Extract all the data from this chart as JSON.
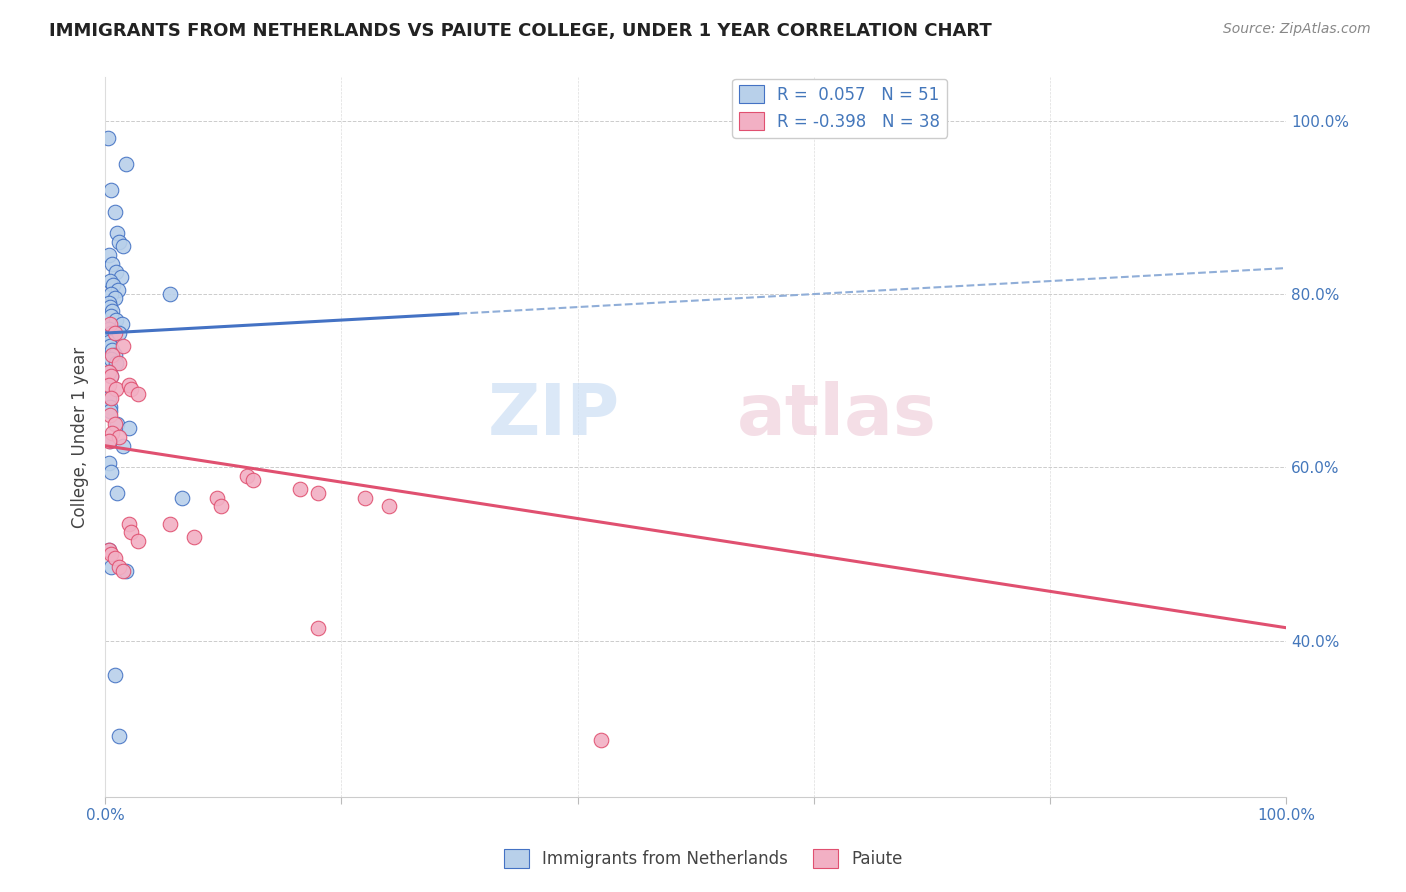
{
  "title": "IMMIGRANTS FROM NETHERLANDS VS PAIUTE COLLEGE, UNDER 1 YEAR CORRELATION CHART",
  "source": "Source: ZipAtlas.com",
  "ylabel": "College, Under 1 year",
  "legend_label1": "Immigrants from Netherlands",
  "legend_label2": "Paiute",
  "R1": 0.057,
  "N1": 51,
  "R2": -0.398,
  "N2": 38,
  "blue_color": "#b8d0ea",
  "pink_color": "#f2b0c4",
  "line_blue": "#4472c4",
  "line_pink": "#e05070",
  "dashed_blue": "#90aed8",
  "blue_line_y0": 75.5,
  "blue_line_y100": 83.0,
  "blue_solid_end": 30.0,
  "pink_line_y0": 62.5,
  "pink_line_y100": 41.5,
  "blue_scatter_x": [
    0.2,
    0.5,
    0.8,
    1.0,
    1.2,
    1.5,
    0.3,
    0.6,
    0.9,
    1.3,
    0.4,
    0.7,
    1.1,
    0.5,
    0.8,
    0.3,
    0.4,
    0.6,
    0.5,
    0.9,
    1.4,
    0.3,
    0.5,
    0.4,
    0.3,
    0.4,
    0.6,
    0.8,
    0.5,
    0.9,
    0.3,
    0.5,
    1.8,
    1.2,
    0.3,
    0.4,
    5.5,
    0.4,
    1.0,
    2.0,
    0.4,
    1.5,
    0.3,
    0.5,
    1.0,
    6.5,
    0.3,
    0.5,
    1.8,
    0.8,
    1.2
  ],
  "blue_scatter_y": [
    98.0,
    92.0,
    89.5,
    87.0,
    86.0,
    85.5,
    84.5,
    83.5,
    82.5,
    82.0,
    81.5,
    81.0,
    80.5,
    80.0,
    79.5,
    79.0,
    78.5,
    78.0,
    77.5,
    77.0,
    76.5,
    76.0,
    75.5,
    75.0,
    74.5,
    74.0,
    73.5,
    73.0,
    72.5,
    72.0,
    71.0,
    70.5,
    95.0,
    75.5,
    68.0,
    67.0,
    80.0,
    66.5,
    65.0,
    64.5,
    63.0,
    62.5,
    60.5,
    59.5,
    57.0,
    56.5,
    50.5,
    48.5,
    48.0,
    36.0,
    29.0
  ],
  "pink_scatter_x": [
    0.4,
    0.8,
    1.5,
    0.6,
    1.2,
    0.3,
    0.5,
    0.3,
    0.9,
    0.5,
    2.0,
    2.2,
    2.8,
    0.4,
    0.8,
    0.6,
    1.2,
    0.3,
    2.0,
    2.2,
    2.8,
    12.0,
    12.5,
    16.5,
    18.0,
    22.0,
    24.0,
    0.3,
    0.5,
    0.8,
    1.2,
    1.5,
    9.5,
    9.8,
    5.5,
    7.5,
    42.0,
    18.0
  ],
  "pink_scatter_y": [
    76.5,
    75.5,
    74.0,
    73.0,
    72.0,
    71.0,
    70.5,
    69.5,
    69.0,
    68.0,
    69.5,
    69.0,
    68.5,
    66.0,
    65.0,
    64.0,
    63.5,
    63.0,
    53.5,
    52.5,
    51.5,
    59.0,
    58.5,
    57.5,
    57.0,
    56.5,
    55.5,
    50.5,
    50.0,
    49.5,
    48.5,
    48.0,
    56.5,
    55.5,
    53.5,
    52.0,
    28.5,
    41.5
  ],
  "xlim": [
    0,
    100
  ],
  "ylim": [
    22,
    105
  ],
  "yticks": [
    40,
    60,
    80,
    100
  ],
  "xtick_positions": [
    0,
    100
  ],
  "xtick_labels": [
    "0.0%",
    "100.0%"
  ],
  "ytick_labels_right": [
    "40.0%",
    "60.0%",
    "80.0%",
    "100.0%"
  ],
  "grid_color": "#cccccc",
  "background": "#ffffff"
}
